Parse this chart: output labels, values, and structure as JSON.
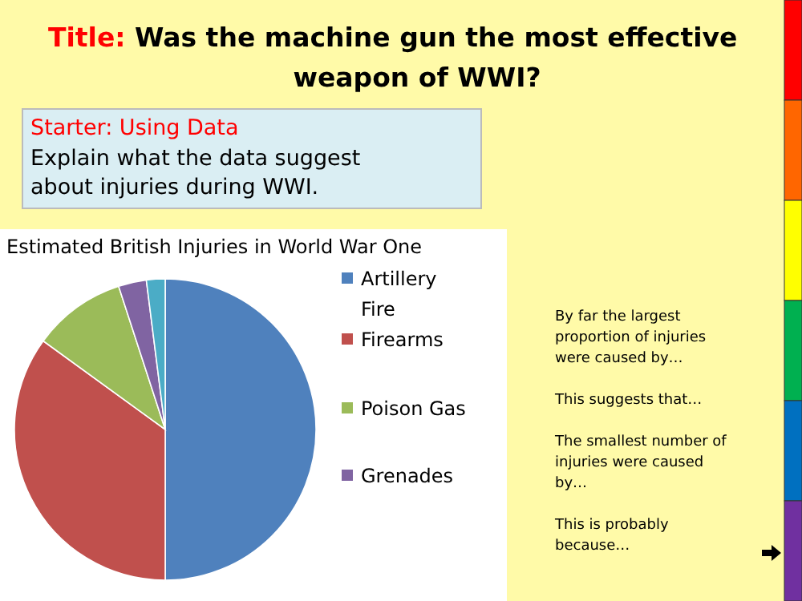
{
  "chart_data": {
    "type": "pie",
    "title": "Estimated British Injuries in World War One",
    "categories": [
      "Artillery Fire",
      "Firearms",
      "Poison Gas",
      "Grenades",
      null
    ],
    "values": [
      50,
      35,
      10,
      3,
      2
    ],
    "colors": [
      "#4f81bd",
      "#c0504d",
      "#9bbb59",
      "#8064a2",
      "#4bacc6"
    ],
    "legend": "right",
    "annotations": [
      "Title:",
      "Was the machine gun the most effective weapon of WWI?",
      "Starter: Using Data",
      "Explain what the data suggest about injuries during WWI.",
      "By far the largest proportion of injuries were caused by…",
      "This suggests that…",
      "The smallest number of injuries were caused by…",
      "This is probably because…"
    ]
  }
}
